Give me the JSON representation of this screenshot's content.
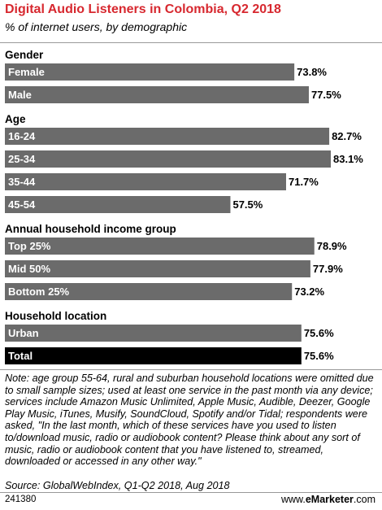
{
  "header": {
    "title": "Digital Audio Listeners in Colombia, Q2 2018",
    "subtitle": "% of internet users, by demographic"
  },
  "chart_data": {
    "type": "bar",
    "orientation": "horizontal",
    "unit": "%",
    "xlim": [
      0,
      100
    ],
    "groups": [
      {
        "label": "Gender",
        "items": [
          {
            "label": "Female",
            "value": 73.8,
            "display": "73.8%"
          },
          {
            "label": "Male",
            "value": 77.5,
            "display": "77.5%"
          }
        ]
      },
      {
        "label": "Age",
        "items": [
          {
            "label": "16-24",
            "value": 82.7,
            "display": "82.7%"
          },
          {
            "label": "25-34",
            "value": 83.1,
            "display": "83.1%"
          },
          {
            "label": "35-44",
            "value": 71.7,
            "display": "71.7%"
          },
          {
            "label": "45-54",
            "value": 57.5,
            "display": "57.5%"
          }
        ]
      },
      {
        "label": "Annual household income group",
        "items": [
          {
            "label": "Top 25%",
            "value": 78.9,
            "display": "78.9%"
          },
          {
            "label": "Mid 50%",
            "value": 77.9,
            "display": "77.9%"
          },
          {
            "label": "Bottom 25%",
            "value": 73.2,
            "display": "73.2%"
          }
        ]
      },
      {
        "label": "Household location",
        "items": [
          {
            "label": "Urban",
            "value": 75.6,
            "display": "75.6%"
          },
          {
            "label": "Total",
            "value": 75.6,
            "display": "75.6%",
            "highlight": true
          }
        ]
      }
    ],
    "colors": {
      "bar": "#6b6b6b",
      "total_bar": "#000000",
      "bar_text": "#ffffff",
      "title": "#d7282f"
    }
  },
  "footer": {
    "note": "Note: age group 55-64, rural and suburban household locations were omitted due to small sample sizes; used at least one service in the past month via any device; services include Amazon Music Unlimited, Apple Music, Audible, Deezer, Google Play Music, iTunes, Musify, SoundCloud, Spotify and/or Tidal; respondents were asked, \"In the last month, which of these services have you used to listen to/download music, radio or audiobook content? Please think about any sort of music, radio or audiobook content that you have listened to, streamed, downloaded or accessed in any other way.\"",
    "source": "Source: GlobalWebIndex, Q1-Q2 2018, Aug 2018",
    "chart_id": "241380",
    "brand_prefix": "www.",
    "brand_name": "eMarketer",
    "brand_suffix": ".com"
  }
}
